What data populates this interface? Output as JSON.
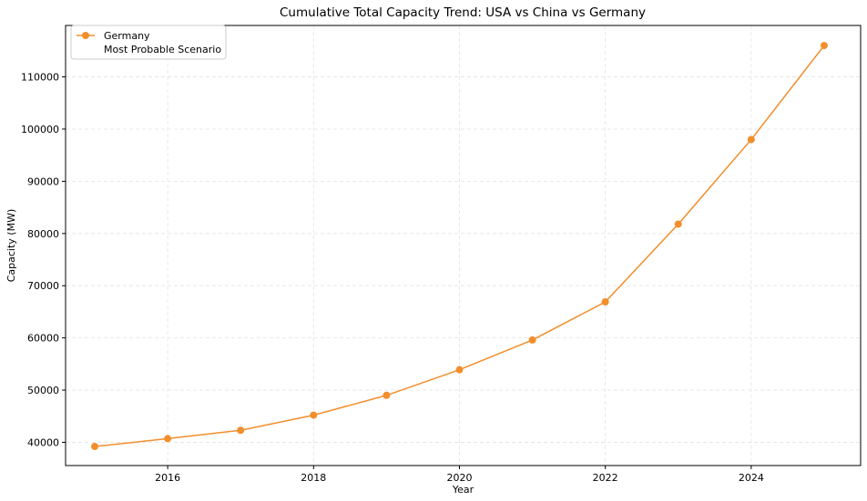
{
  "chart_data": {
    "type": "line",
    "title": "Cumulative Total Capacity Trend: USA vs China vs Germany",
    "xlabel": "Year",
    "ylabel": "Capacity (MW)",
    "x": [
      2015,
      2016,
      2017,
      2018,
      2019,
      2020,
      2021,
      2022,
      2023,
      2024,
      2025
    ],
    "series": [
      {
        "name": "Germany",
        "color": "#f28e2b",
        "marker": "circle",
        "values": [
          39200,
          40700,
          42300,
          45200,
          49000,
          53900,
          59600,
          66900,
          81800,
          98000,
          116000
        ]
      }
    ],
    "legend": {
      "position": "top-left",
      "entries": [
        "Germany",
        "Most Probable Scenario"
      ]
    },
    "xticks": [
      2016,
      2018,
      2020,
      2022,
      2024
    ],
    "xtick_labels": [
      "2016",
      "2018",
      "2020",
      "2022",
      "2024"
    ],
    "yticks": [
      40000,
      50000,
      60000,
      70000,
      80000,
      90000,
      100000,
      110000
    ],
    "ytick_labels": [
      "40000",
      "50000",
      "60000",
      "70000",
      "80000",
      "90000",
      "100000",
      "110000"
    ],
    "xlim": [
      2014.6,
      2025.5
    ],
    "ylim": [
      35550,
      119850
    ],
    "grid": true
  }
}
